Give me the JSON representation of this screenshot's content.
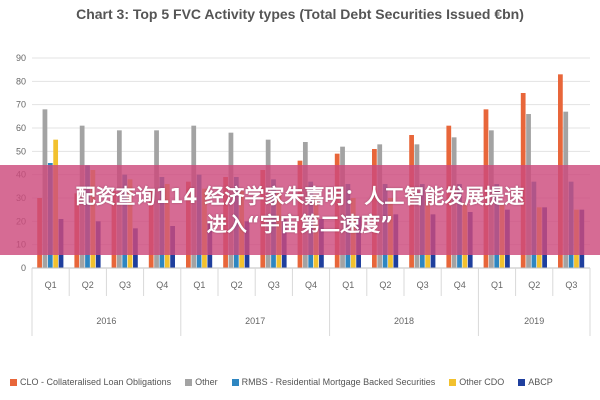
{
  "chart_data": {
    "type": "bar",
    "title": "Chart 3: Top 5 FVC Activity types (Total Debt Securities Issued €bn)",
    "xlabel": "",
    "ylabel": "",
    "ylim": [
      0,
      90
    ],
    "yticks": [
      "0",
      "10",
      "20",
      "30",
      "40",
      "50",
      "60",
      "70",
      "80",
      "90"
    ],
    "grid": true,
    "legend_position": "bottom",
    "categories": [
      "Q1",
      "Q2",
      "Q3",
      "Q4",
      "Q1",
      "Q2",
      "Q3",
      "Q4",
      "Q1",
      "Q2",
      "Q3",
      "Q4",
      "Q1",
      "Q2",
      "Q3"
    ],
    "groups": [
      {
        "label": "2016",
        "span": 4
      },
      {
        "label": "2017",
        "span": 4
      },
      {
        "label": "2018",
        "span": 4
      },
      {
        "label": "2019",
        "span": 3
      }
    ],
    "series": [
      {
        "name": "CLO - Collateralised Loan Obligations",
        "color": "#e8663a",
        "values": [
          30,
          32,
          33,
          34,
          37,
          39,
          42,
          46,
          49,
          51,
          57,
          61,
          68,
          75,
          83
        ]
      },
      {
        "name": "Other",
        "color": "#a3a3a3",
        "values": [
          68,
          61,
          59,
          59,
          61,
          58,
          55,
          54,
          52,
          53,
          53,
          56,
          59,
          66,
          67
        ]
      },
      {
        "name": "RMBS - Residential Mortgage Backed Securities",
        "color": "#2e86c1",
        "values": [
          45,
          44,
          40,
          39,
          40,
          39,
          38,
          37,
          36,
          36,
          36,
          36,
          36,
          37,
          37
        ]
      },
      {
        "name": "Other CDO",
        "color": "#f2c12e",
        "values": [
          55,
          42,
          38,
          36,
          34,
          33,
          32,
          31,
          30,
          30,
          29,
          28,
          27,
          26,
          25
        ]
      },
      {
        "name": "ABCP",
        "color": "#1f3f9e",
        "values": [
          21,
          20,
          17,
          18,
          20,
          20,
          21,
          21,
          22,
          23,
          23,
          24,
          25,
          26,
          25
        ]
      }
    ]
  },
  "banner": {
    "line1": "配资查询114 经济学家朱嘉明：人工智能发展提速",
    "line2": "进入“宇宙第二速度”"
  }
}
